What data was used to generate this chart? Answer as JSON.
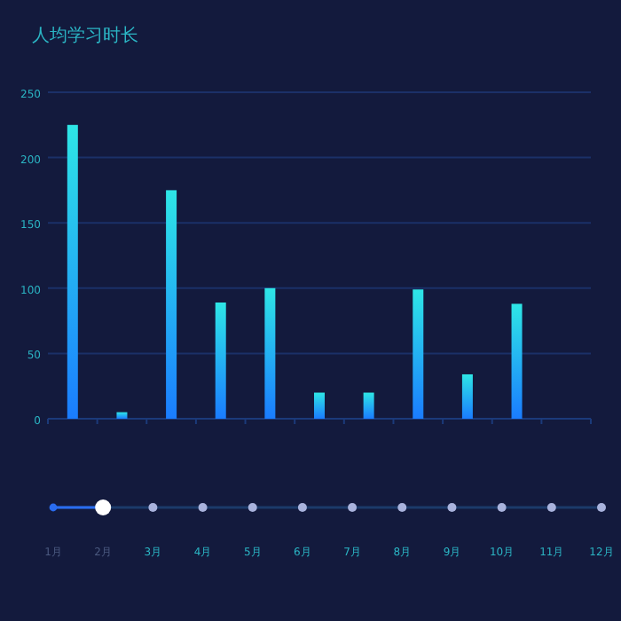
{
  "chart_data": {
    "type": "bar",
    "title": "人均学习时长",
    "categories": [
      null,
      null,
      null,
      null,
      null,
      null,
      null,
      null,
      null,
      null,
      null
    ],
    "series": [
      {
        "color": "#1a7cff",
        "values": [
          225,
          5,
          175,
          89,
          100,
          20,
          20,
          99,
          34,
          88,
          null
        ]
      }
    ],
    "ylim": [
      0,
      250
    ],
    "yticks": [
      0,
      50,
      100,
      150,
      200,
      250
    ],
    "grid": "y",
    "tick_labels": "y",
    "annotations": [
      "1月",
      "2月",
      "3月",
      "4月",
      "5月",
      "6月",
      "7月",
      "8月",
      "9月",
      "10月",
      "11月",
      "12月"
    ]
  }
}
